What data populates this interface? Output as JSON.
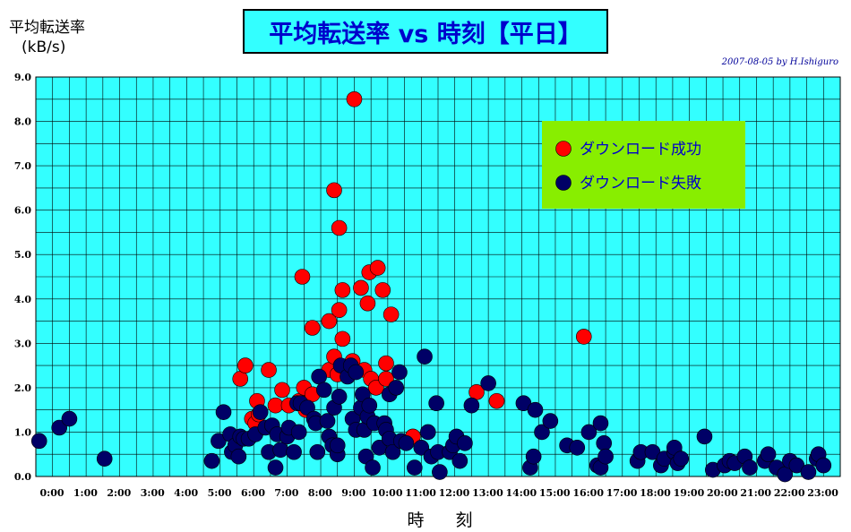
{
  "chart_data": {
    "type": "scatter",
    "title": "平均転送率 vs 時刻【平日】",
    "ylabel_line1": "平均転送率",
    "ylabel_line2": "(kB/s)",
    "xlabel": "時　刻",
    "credit": "2007-08-05 by H.Ishiguro",
    "xlim": [
      0,
      24
    ],
    "ylim": [
      0,
      9
    ],
    "x_ticks": [
      "0:00",
      "1:00",
      "2:00",
      "3:00",
      "4:00",
      "5:00",
      "6:00",
      "7:00",
      "8:00",
      "9:00",
      "10:00",
      "11:00",
      "12:00",
      "13:00",
      "14:00",
      "15:00",
      "16:00",
      "17:00",
      "18:00",
      "19:00",
      "20:00",
      "21:00",
      "22:00",
      "23:00"
    ],
    "y_ticks": [
      "0.0",
      "1.0",
      "2.0",
      "3.0",
      "4.0",
      "5.0",
      "6.0",
      "7.0",
      "8.0",
      "9.0"
    ],
    "grid": true,
    "background_color": "#33ffff",
    "legend_placement": "upper-right",
    "legend_background": "#88ee00",
    "series": [
      {
        "name": "ダウンロード成功",
        "color": "#ff0000",
        "points": [
          [
            6.1,
            2.2
          ],
          [
            6.25,
            2.5
          ],
          [
            6.45,
            1.3
          ],
          [
            6.55,
            1.2
          ],
          [
            6.6,
            1.7
          ],
          [
            6.65,
            1.4
          ],
          [
            6.95,
            2.4
          ],
          [
            7.15,
            1.6
          ],
          [
            7.35,
            1.95
          ],
          [
            7.55,
            1.6
          ],
          [
            7.85,
            1.7
          ],
          [
            7.95,
            4.5
          ],
          [
            8.0,
            2.0
          ],
          [
            8.05,
            1.5
          ],
          [
            8.25,
            1.85
          ],
          [
            8.25,
            3.35
          ],
          [
            8.75,
            3.5
          ],
          [
            8.75,
            2.4
          ],
          [
            8.9,
            2.7
          ],
          [
            8.9,
            6.45
          ],
          [
            9.0,
            2.3
          ],
          [
            9.05,
            3.75
          ],
          [
            9.05,
            5.6
          ],
          [
            9.15,
            3.1
          ],
          [
            9.15,
            4.2
          ],
          [
            9.45,
            2.6
          ],
          [
            9.5,
            8.5
          ],
          [
            9.7,
            4.25
          ],
          [
            9.8,
            2.4
          ],
          [
            9.9,
            3.9
          ],
          [
            9.95,
            4.6
          ],
          [
            10.0,
            2.2
          ],
          [
            10.15,
            2.0
          ],
          [
            10.2,
            4.7
          ],
          [
            10.35,
            4.2
          ],
          [
            10.45,
            2.55
          ],
          [
            10.45,
            2.2
          ],
          [
            10.6,
            3.65
          ],
          [
            11.25,
            0.9
          ],
          [
            13.15,
            1.9
          ],
          [
            13.75,
            1.7
          ],
          [
            16.35,
            3.15
          ]
        ]
      },
      {
        "name": "ダウンロード失敗",
        "color": "#000066",
        "points": [
          [
            0.1,
            0.8
          ],
          [
            0.7,
            1.1
          ],
          [
            1.0,
            1.3
          ],
          [
            2.05,
            0.4
          ],
          [
            5.25,
            0.35
          ],
          [
            5.45,
            0.8
          ],
          [
            5.6,
            1.45
          ],
          [
            5.8,
            0.95
          ],
          [
            5.85,
            0.55
          ],
          [
            5.95,
            0.7
          ],
          [
            6.05,
            0.45
          ],
          [
            6.1,
            0.9
          ],
          [
            6.2,
            0.85
          ],
          [
            6.35,
            0.85
          ],
          [
            6.55,
            0.95
          ],
          [
            6.7,
            1.45
          ],
          [
            6.85,
            1.1
          ],
          [
            6.95,
            0.55
          ],
          [
            7.05,
            1.15
          ],
          [
            7.15,
            0.2
          ],
          [
            7.2,
            0.95
          ],
          [
            7.3,
            0.6
          ],
          [
            7.5,
            0.9
          ],
          [
            7.55,
            1.1
          ],
          [
            7.7,
            0.55
          ],
          [
            7.8,
            1.65
          ],
          [
            7.85,
            1.0
          ],
          [
            7.9,
            1.65
          ],
          [
            8.1,
            1.55
          ],
          [
            8.3,
            1.3
          ],
          [
            8.35,
            1.2
          ],
          [
            8.4,
            0.55
          ],
          [
            8.45,
            2.25
          ],
          [
            8.6,
            1.95
          ],
          [
            8.7,
            1.25
          ],
          [
            8.75,
            0.9
          ],
          [
            8.85,
            0.7
          ],
          [
            8.9,
            1.55
          ],
          [
            9.0,
            0.5
          ],
          [
            9.0,
            0.7
          ],
          [
            9.05,
            1.8
          ],
          [
            9.1,
            2.5
          ],
          [
            9.3,
            2.25
          ],
          [
            9.4,
            2.5
          ],
          [
            9.45,
            1.3
          ],
          [
            9.55,
            1.05
          ],
          [
            9.55,
            2.35
          ],
          [
            9.7,
            1.55
          ],
          [
            9.75,
            1.85
          ],
          [
            9.8,
            1.05
          ],
          [
            9.85,
            0.45
          ],
          [
            9.9,
            1.35
          ],
          [
            9.95,
            1.6
          ],
          [
            10.05,
            0.2
          ],
          [
            10.1,
            1.2
          ],
          [
            10.25,
            0.65
          ],
          [
            10.4,
            1.2
          ],
          [
            10.45,
            1.05
          ],
          [
            10.55,
            0.85
          ],
          [
            10.55,
            1.85
          ],
          [
            10.65,
            0.55
          ],
          [
            10.75,
            2.0
          ],
          [
            10.85,
            2.35
          ],
          [
            10.9,
            0.8
          ],
          [
            11.05,
            0.75
          ],
          [
            11.3,
            0.2
          ],
          [
            11.5,
            0.65
          ],
          [
            11.6,
            2.7
          ],
          [
            11.7,
            1.0
          ],
          [
            11.8,
            0.45
          ],
          [
            11.95,
            1.65
          ],
          [
            12.0,
            0.55
          ],
          [
            12.05,
            0.1
          ],
          [
            12.35,
            0.55
          ],
          [
            12.45,
            0.7
          ],
          [
            12.55,
            0.9
          ],
          [
            12.65,
            0.35
          ],
          [
            12.8,
            0.75
          ],
          [
            13.0,
            1.6
          ],
          [
            13.5,
            2.1
          ],
          [
            14.55,
            1.65
          ],
          [
            14.75,
            0.2
          ],
          [
            14.85,
            0.45
          ],
          [
            14.9,
            1.5
          ],
          [
            15.1,
            1.0
          ],
          [
            15.35,
            1.25
          ],
          [
            15.85,
            0.7
          ],
          [
            16.15,
            0.65
          ],
          [
            16.5,
            1.0
          ],
          [
            16.75,
            0.25
          ],
          [
            16.85,
            0.2
          ],
          [
            16.85,
            1.2
          ],
          [
            16.95,
            0.75
          ],
          [
            17.0,
            0.45
          ],
          [
            17.95,
            0.35
          ],
          [
            18.05,
            0.55
          ],
          [
            18.4,
            0.55
          ],
          [
            18.65,
            0.25
          ],
          [
            18.75,
            0.4
          ],
          [
            19.05,
            0.55
          ],
          [
            19.05,
            0.65
          ],
          [
            19.15,
            0.3
          ],
          [
            19.25,
            0.4
          ],
          [
            19.95,
            0.9
          ],
          [
            20.2,
            0.15
          ],
          [
            20.55,
            0.25
          ],
          [
            20.7,
            0.35
          ],
          [
            20.85,
            0.3
          ],
          [
            21.15,
            0.45
          ],
          [
            21.3,
            0.2
          ],
          [
            21.75,
            0.35
          ],
          [
            21.85,
            0.5
          ],
          [
            22.1,
            0.2
          ],
          [
            22.35,
            0.05
          ],
          [
            22.5,
            0.35
          ],
          [
            22.7,
            0.25
          ],
          [
            23.05,
            0.1
          ],
          [
            23.3,
            0.4
          ],
          [
            23.35,
            0.5
          ],
          [
            23.5,
            0.25
          ]
        ]
      }
    ]
  }
}
